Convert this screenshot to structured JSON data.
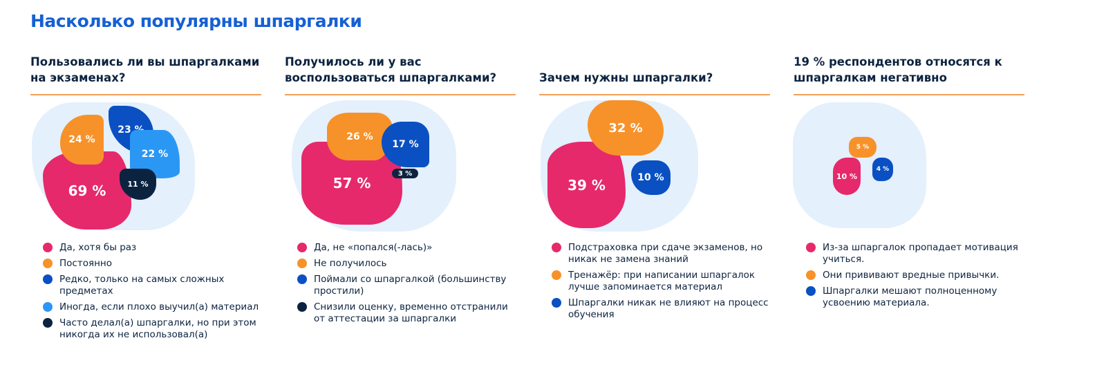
{
  "title": "Насколько популярны шпаргалки",
  "colors": {
    "pink": "#e6296b",
    "orange": "#f7922a",
    "blue": "#0a50c2",
    "light_blue": "#2b97f5",
    "navy": "#0c2340",
    "background": "#e4f0fc",
    "accent": "#1560d4"
  },
  "chart_data": [
    {
      "type": "pie",
      "title": "Пользовались ли вы шпаргалками на экзаменах?",
      "series": [
        {
          "name": "Да, хотя бы раз",
          "value": 69,
          "label": "69 %",
          "color": "#e6296b"
        },
        {
          "name": "Постоянно",
          "value": 24,
          "label": "24 %",
          "color": "#f7922a"
        },
        {
          "name": "Редко, только на самых сложных предметах",
          "value": 23,
          "label": "23 %",
          "color": "#0a50c2"
        },
        {
          "name": "Иногда, если плохо выучил(а) материал",
          "value": 22,
          "label": "22 %",
          "color": "#2b97f5"
        },
        {
          "name": "Часто делал(а) шпаргалки, но при этом никогда их не использовал(а)",
          "value": 11,
          "label": "11 %",
          "color": "#0c2340"
        }
      ]
    },
    {
      "type": "pie",
      "title": "Получилось ли у вас воспользоваться шпаргалками?",
      "series": [
        {
          "name": "Да, не «попался(-лась)»",
          "value": 57,
          "label": "57 %",
          "color": "#e6296b"
        },
        {
          "name": "Не получилось",
          "value": 26,
          "label": "26 %",
          "color": "#f7922a"
        },
        {
          "name": "Поймали со шпаргалкой (большинству простили)",
          "value": 17,
          "label": "17 %",
          "color": "#0a50c2"
        },
        {
          "name": "Снизили оценку, временно отстранили от аттестации за шпаргалки",
          "value": 3,
          "label": "3 %",
          "color": "#0c2340"
        }
      ]
    },
    {
      "type": "pie",
      "title": "Зачем нужны шпаргалки?",
      "series": [
        {
          "name": "Подстраховка при сдаче экзаменов, но никак не замена знаний",
          "value": 39,
          "label": "39 %",
          "color": "#e6296b"
        },
        {
          "name": "Тренажёр: при написании шпаргалок лучше запоминается материал",
          "value": 32,
          "label": "32 %",
          "color": "#f7922a"
        },
        {
          "name": "Шпаргалки никак не влияют на процесс обучения",
          "value": 10,
          "label": "10 %",
          "color": "#0a50c2"
        }
      ]
    },
    {
      "type": "pie",
      "title": "19 % респондентов относятся к шпаргалкам негативно",
      "series": [
        {
          "name": "Из-за шпаргалок пропадает мотивация учиться.",
          "value": 10,
          "label": "10 %",
          "color": "#e6296b"
        },
        {
          "name": "Они прививают вредные привычки.",
          "value": 5,
          "label": "5 %",
          "color": "#f7922a"
        },
        {
          "name": "Шпаргалки мешают полноценному усвоению материала.",
          "value": 4,
          "label": "4 %",
          "color": "#0a50c2"
        }
      ]
    }
  ]
}
